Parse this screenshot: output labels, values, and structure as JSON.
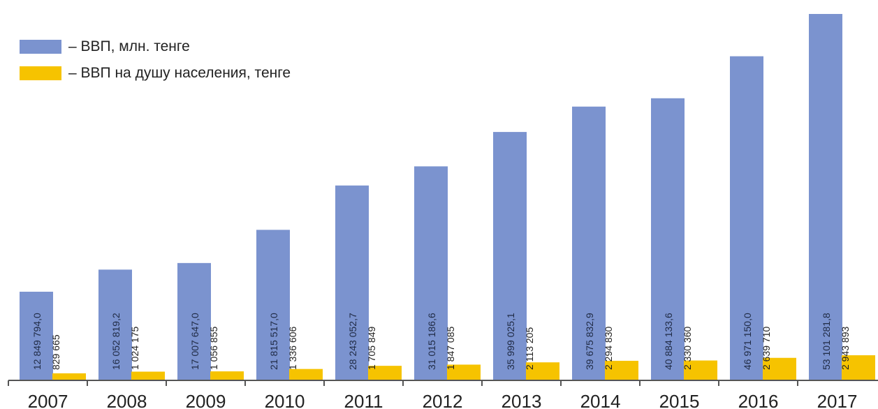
{
  "chart_data": {
    "type": "bar",
    "categories": [
      "2007",
      "2008",
      "2009",
      "2010",
      "2011",
      "2012",
      "2013",
      "2014",
      "2015",
      "2016",
      "2017"
    ],
    "series": [
      {
        "name": "– ВВП, млн. тенге",
        "color": "#7b93cf",
        "values": [
          12849794.0,
          16052819.2,
          17007647.0,
          21815517.0,
          28243052.7,
          31015186.6,
          35999025.1,
          39675832.9,
          40884133.6,
          46971150.0,
          53101281.8
        ],
        "labels": [
          "12 849 794,0",
          "16 052 819,2",
          "17 007 647,0",
          "21 815 517,0",
          "28 243 052,7",
          "31 015 186,6",
          "35 999 025,1",
          "39 675 832,9",
          "40 884 133,6",
          "46 971 150,0",
          "53 101 281,8"
        ]
      },
      {
        "name": "– ВВП на душу населения, тенге",
        "color": "#f6c300",
        "values": [
          829665,
          1024175,
          1056855,
          1336606,
          1705849,
          1847085,
          2113205,
          2294830,
          2330360,
          2639710,
          2943893
        ],
        "labels": [
          "829 665",
          "1 024 175",
          "1 056 855",
          "1 336 606",
          "1 705 849",
          "1 847 085",
          "2 113 205",
          "2 294 830",
          "2 330 360",
          "2 639 710",
          "2 943 893"
        ]
      }
    ],
    "title": "",
    "xlabel": "",
    "ylabel": "",
    "legend_position": "top-left",
    "grid": false
  }
}
